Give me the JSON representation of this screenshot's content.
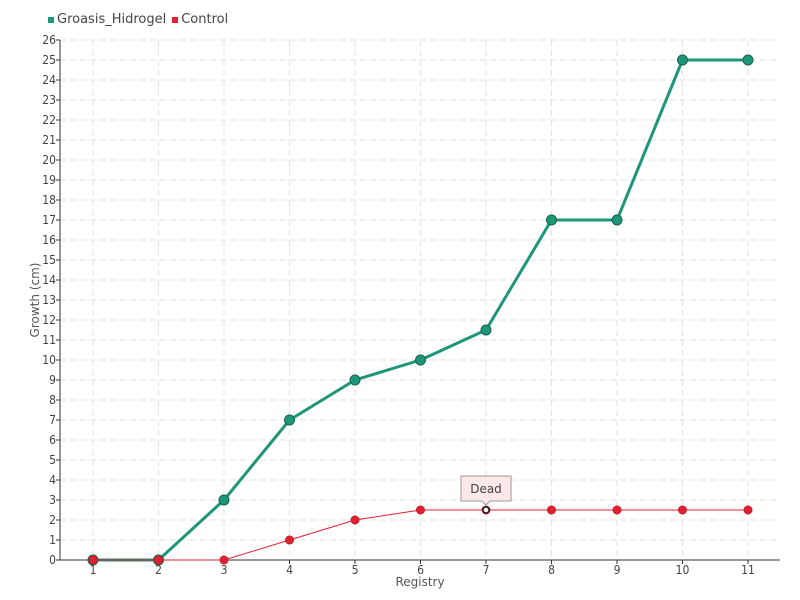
{
  "chart_data": {
    "type": "line",
    "title": "",
    "xlabel": "Registry",
    "ylabel": "Growth (cm)",
    "categories": [
      "1",
      "2",
      "3",
      "4",
      "5",
      "6",
      "7",
      "8",
      "9",
      "10",
      "11"
    ],
    "ylim": [
      0,
      26
    ],
    "yticks": [
      0,
      1,
      2,
      3,
      4,
      5,
      6,
      7,
      8,
      9,
      10,
      11,
      12,
      13,
      14,
      15,
      16,
      17,
      18,
      19,
      20,
      21,
      22,
      23,
      24,
      25,
      26
    ],
    "grid": true,
    "legend_position": "top-left",
    "series": [
      {
        "name": "Groasis_Hidrogel",
        "color": "#1e9678",
        "values": [
          0,
          0,
          3,
          7,
          9,
          10,
          11.5,
          17,
          17,
          25,
          25
        ]
      },
      {
        "name": "Control",
        "color": "#e02230",
        "values": [
          0,
          0,
          0,
          1,
          2,
          2.5,
          2.5,
          2.5,
          2.5,
          2.5,
          2.5
        ]
      }
    ],
    "annotations": [
      {
        "text": "Dead",
        "series": "Control",
        "category": "7",
        "value": 2.5
      }
    ]
  }
}
